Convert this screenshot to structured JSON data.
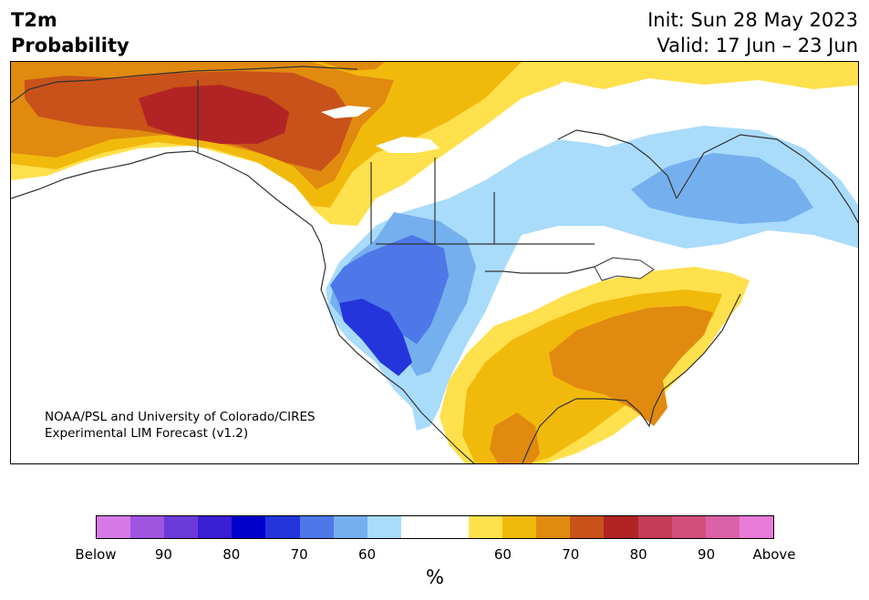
{
  "header": {
    "variable": "T2m",
    "subtitle": "Probability",
    "init": "Init: Sun 28 May 2023",
    "valid": "Valid: 17 Jun – 23 Jun"
  },
  "credit": {
    "line1": "NOAA/PSL and University of Colorado/CIRES",
    "line2": "Experimental LIM Forecast (v1.2)"
  },
  "colorbar": {
    "colors": [
      "#d67ae8",
      "#9f55e0",
      "#6c3ad8",
      "#3a1fd4",
      "#0000cc",
      "#2436db",
      "#4e77e8",
      "#75afee",
      "#a9dbfb",
      "#ffffff",
      "#ffffff",
      "#ffe04d",
      "#f2b90d",
      "#e08a10",
      "#c8521a",
      "#b22424",
      "#c43c56",
      "#d24f7c",
      "#db61a8",
      "#e87ad8"
    ],
    "tick_labels": [
      "Below",
      "90",
      "80",
      "70",
      "60",
      "60",
      "70",
      "80",
      "90",
      "Above"
    ],
    "unit": "%"
  },
  "map": {
    "categories": {
      "below_60": "#a9dbfb",
      "below_65": "#75afee",
      "below_70": "#4e77e8",
      "below_75": "#2436db",
      "above_55": "#ffe04d",
      "above_60": "#f2b90d",
      "above_65": "#e08a10",
      "above_70": "#c8521a",
      "above_75": "#b22424"
    }
  }
}
